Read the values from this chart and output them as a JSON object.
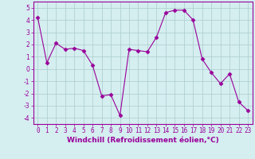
{
  "x": [
    0,
    1,
    2,
    3,
    4,
    5,
    6,
    7,
    8,
    9,
    10,
    11,
    12,
    13,
    14,
    15,
    16,
    17,
    18,
    19,
    20,
    21,
    22,
    23
  ],
  "y": [
    4.2,
    0.5,
    2.1,
    1.6,
    1.7,
    1.5,
    0.3,
    -2.2,
    -2.1,
    -3.8,
    1.6,
    1.5,
    1.4,
    2.6,
    4.6,
    4.8,
    4.8,
    4.0,
    0.8,
    -0.3,
    -1.2,
    -0.4,
    -2.7,
    -3.4
  ],
  "line_color": "#990099",
  "marker": "D",
  "markersize": 2.5,
  "linewidth": 0.8,
  "bg_color": "#d5eef0",
  "grid_color": "#aacccc",
  "xlabel": "Windchill (Refroidissement éolien,°C)",
  "xlabel_color": "#990099",
  "xlabel_fontsize": 6.5,
  "tick_color": "#990099",
  "tick_fontsize": 5.5,
  "ylim": [
    -4.5,
    5.5
  ],
  "yticks": [
    -4,
    -3,
    -2,
    -1,
    0,
    1,
    2,
    3,
    4,
    5
  ],
  "xticks": [
    0,
    1,
    2,
    3,
    4,
    5,
    6,
    7,
    8,
    9,
    10,
    11,
    12,
    13,
    14,
    15,
    16,
    17,
    18,
    19,
    20,
    21,
    22,
    23
  ]
}
